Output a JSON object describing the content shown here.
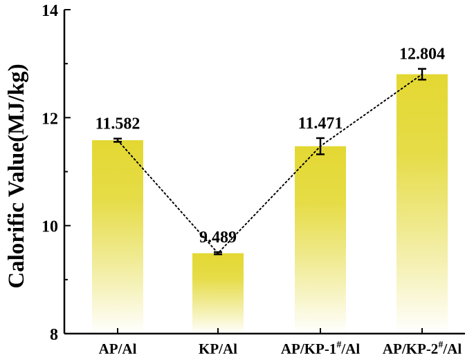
{
  "chart_data": {
    "type": "bar",
    "title": "",
    "xlabel": "",
    "ylabel": "Calorific Value(MJ/kg)",
    "ylim": [
      8,
      14
    ],
    "yticks": [
      8,
      10,
      12,
      14
    ],
    "categories": [
      {
        "name": "AP/Al",
        "base": "AP/Al",
        "sup": "",
        "tail": ""
      },
      {
        "name": "KP/Al",
        "base": "KP/Al",
        "sup": "",
        "tail": ""
      },
      {
        "name": "AP/KP-1#/Al",
        "base": "AP/KP-1",
        "sup": "#",
        "tail": "/Al"
      },
      {
        "name": "AP/KP-2#/Al",
        "base": "AP/KP-2",
        "sup": "#",
        "tail": "/Al"
      }
    ],
    "values": [
      11.582,
      9.489,
      11.471,
      12.804
    ],
    "value_labels": [
      "11.582",
      "9.489",
      "11.471",
      "12.804"
    ],
    "errors": [
      0.03,
      0.02,
      0.15,
      0.1
    ],
    "connector_line": "dotted",
    "grid": false,
    "bar_color": "#e3d832",
    "bar_fade_color": "#ffffff"
  }
}
